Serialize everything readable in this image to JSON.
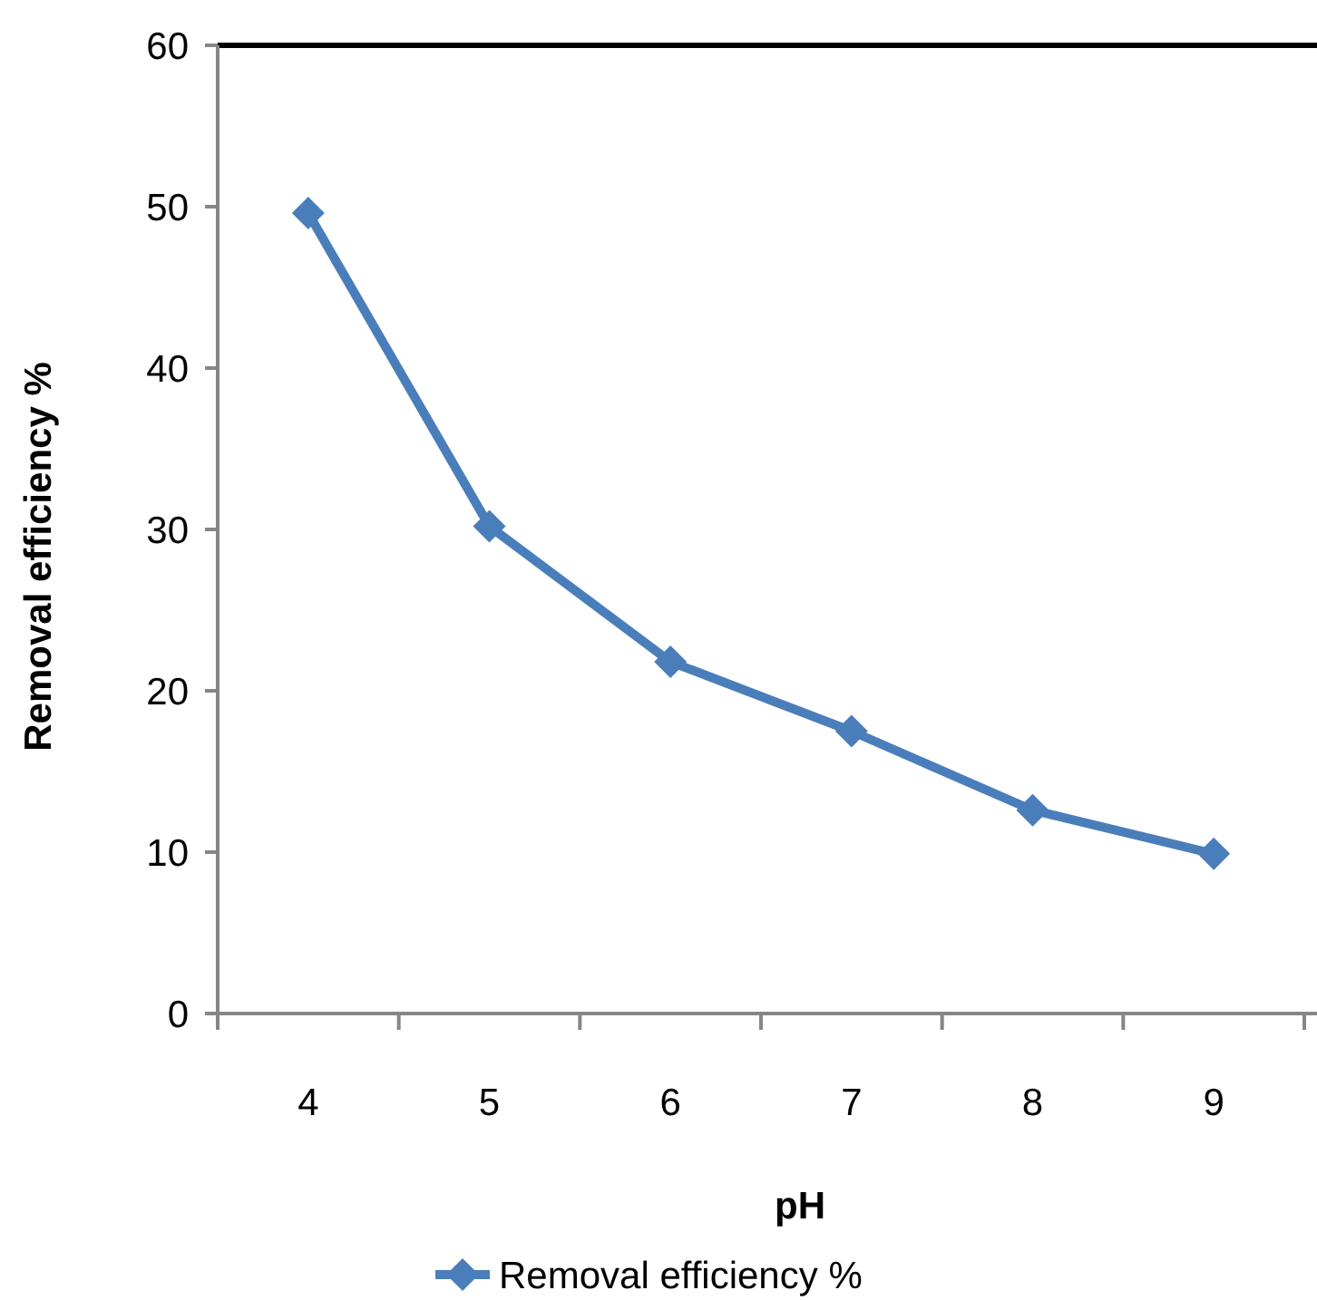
{
  "chart_data": {
    "type": "line",
    "xlabel": "pH",
    "ylabel": "Removal efficiency %",
    "categories": [
      "4",
      "5",
      "6",
      "7",
      "8",
      "9"
    ],
    "series": [
      {
        "name": "Removal efficiency %",
        "color": "#4a7ebb",
        "values": [
          49.6,
          30.2,
          21.8,
          17.5,
          12.6,
          9.9
        ]
      }
    ],
    "ylim": [
      0,
      60
    ],
    "yticks": [
      0,
      10,
      20,
      30,
      40,
      50,
      60
    ],
    "legend": "bottom",
    "marker": "diamond",
    "line_style": "solid"
  }
}
